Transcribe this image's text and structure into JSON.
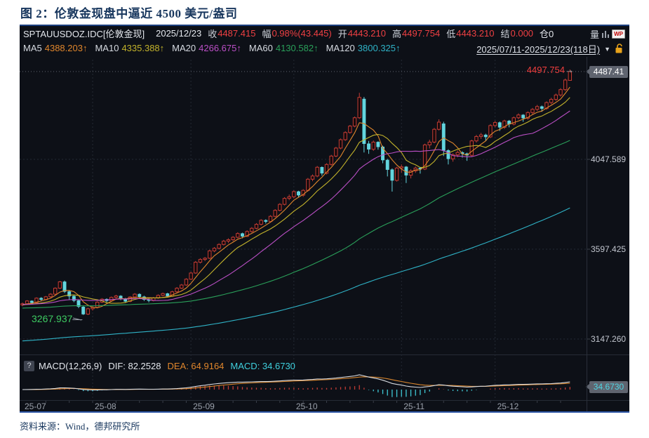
{
  "title": "图 2：伦敦金现盘中逼近 4500 美元/盎司",
  "source": "资料来源：Wind，德邦研究所",
  "chart": {
    "header1": [
      {
        "t": "SPTAUUSDOZ.IDC[伦敦金现]",
        "c": "w first"
      },
      {
        "t": "2025/12/23",
        "c": "w"
      },
      {
        "t": "收",
        "c": "l"
      },
      {
        "t": "4487.415",
        "c": "r"
      },
      {
        "t": "幅",
        "c": "l"
      },
      {
        "t": "0.98%(43.445)",
        "c": "r"
      },
      {
        "t": "开",
        "c": "l"
      },
      {
        "t": "4443.210",
        "c": "r"
      },
      {
        "t": "高",
        "c": "l"
      },
      {
        "t": "4497.754",
        "c": "r"
      },
      {
        "t": "低",
        "c": "l"
      },
      {
        "t": "4443.210",
        "c": "r"
      },
      {
        "t": "结",
        "c": "l"
      },
      {
        "t": "0.000",
        "c": "r"
      },
      {
        "t": "仓0",
        "c": "w"
      }
    ],
    "volume_glyph": "量",
    "wp_label": "WP",
    "ma_items": [
      {
        "label": "MA5",
        "value": "4388.203↑",
        "color": "#e0862c"
      },
      {
        "label": "MA10",
        "value": "4335.388↑",
        "color": "#c3b32b"
      },
      {
        "label": "MA20",
        "value": "4266.675↑",
        "color": "#bb4fc6"
      },
      {
        "label": "MA60",
        "value": "4130.582↑",
        "color": "#2aa05a"
      },
      {
        "label": "MA120",
        "value": "3800.325↑",
        "color": "#2fb3c7"
      }
    ],
    "range_label": "2025/07/11-2025/12/23(118日)",
    "caret": "▼",
    "y_axis": {
      "current_badge": "4487.41",
      "ticks": [
        {
          "label": "4047.589",
          "price": 4047.589
        },
        {
          "label": "3597.425",
          "price": 3597.425
        },
        {
          "label": "3147.260",
          "price": 3147.26
        }
      ]
    },
    "annotations": {
      "high": "4497.754",
      "high_arrow": "→",
      "low": "3267.937",
      "low_dash": "—"
    },
    "x_axis_labels": [
      "25-07",
      "25-08",
      "25-09",
      "25-10",
      "25-11",
      "25-12"
    ],
    "macd": {
      "help": "?",
      "segments": [
        {
          "t": "MACD(12,26,9)",
          "c": "w"
        },
        {
          "t": "DIF: 82.2528",
          "c": "w"
        },
        {
          "t": "DEA: 64.9164",
          "c": "o"
        },
        {
          "t": "MACD: 34.6730",
          "c": "c"
        }
      ],
      "badge": "34.6730"
    }
  },
  "chart_data": {
    "type": "candlestick",
    "symbol": "SPTAUUSDOZ.IDC",
    "name": "伦敦金现",
    "date_range": "2025/07/11-2025/12/23",
    "days": 118,
    "last": {
      "open": 4443.21,
      "high": 4497.754,
      "low": 4443.21,
      "close": 4487.415,
      "change_pct": 0.98,
      "change": 43.445
    },
    "period_high": 4497.754,
    "period_low": 3267.937,
    "y_ticks": [
      4047.589,
      3597.425,
      3147.26
    ],
    "month_start_indices": [
      0,
      15,
      36,
      58,
      81,
      101
    ],
    "month_labels": [
      "25-07",
      "25-08",
      "25-09",
      "25-10",
      "25-11",
      "25-12"
    ],
    "ma_settings": [
      {
        "n": 5,
        "color": "#e0862c",
        "pad": 3318,
        "last": 4388.203
      },
      {
        "n": 10,
        "color": "#c3b32b",
        "pad": 3318,
        "last": 4335.388
      },
      {
        "n": 20,
        "color": "#bb4fc6",
        "pad": 3320,
        "last": 4266.675
      },
      {
        "n": 60,
        "color": "#2aa05a",
        "pad": 3302,
        "last": 4130.582
      },
      {
        "n": 120,
        "color": "#2fb3c7",
        "pad": 3136,
        "last": 3800.325
      }
    ],
    "macd_params": [
      12,
      26,
      9
    ],
    "macd_last": {
      "dif": 82.2528,
      "dea": 64.9164,
      "macd": 34.673
    },
    "ohlc": [
      [
        3318,
        3330,
        3311,
        3324
      ],
      [
        3324,
        3342,
        3320,
        3338
      ],
      [
        3338,
        3341,
        3322,
        3329
      ],
      [
        3329,
        3356,
        3326,
        3352
      ],
      [
        3352,
        3357,
        3338,
        3345
      ],
      [
        3345,
        3363,
        3341,
        3359
      ],
      [
        3359,
        3377,
        3355,
        3372
      ],
      [
        3372,
        3406,
        3368,
        3402
      ],
      [
        3402,
        3438,
        3398,
        3434
      ],
      [
        3434,
        3440,
        3378,
        3385
      ],
      [
        3385,
        3390,
        3342,
        3362
      ],
      [
        3362,
        3368,
        3332,
        3340
      ],
      [
        3340,
        3346,
        3302,
        3310
      ],
      [
        3308,
        3312,
        3267.937,
        3272
      ],
      [
        3272,
        3304,
        3268,
        3299
      ],
      [
        3299,
        3312,
        3290,
        3306
      ],
      [
        3306,
        3336,
        3301,
        3332
      ],
      [
        3332,
        3352,
        3328,
        3347
      ],
      [
        3347,
        3351,
        3332,
        3339
      ],
      [
        3339,
        3360,
        3335,
        3356
      ],
      [
        3356,
        3369,
        3350,
        3363
      ],
      [
        3363,
        3367,
        3342,
        3348
      ],
      [
        3348,
        3353,
        3329,
        3336
      ],
      [
        3336,
        3362,
        3332,
        3358
      ],
      [
        3358,
        3377,
        3353,
        3372
      ],
      [
        3372,
        3376,
        3352,
        3359
      ],
      [
        3359,
        3364,
        3338,
        3345
      ],
      [
        3345,
        3349,
        3331,
        3340
      ],
      [
        3340,
        3358,
        3336,
        3353
      ],
      [
        3353,
        3371,
        3349,
        3366
      ],
      [
        3366,
        3380,
        3361,
        3375
      ],
      [
        3375,
        3379,
        3355,
        3362
      ],
      [
        3362,
        3389,
        3358,
        3384
      ],
      [
        3384,
        3407,
        3380,
        3402
      ],
      [
        3402,
        3423,
        3398,
        3418
      ],
      [
        3418,
        3452,
        3414,
        3447
      ],
      [
        3447,
        3484,
        3443,
        3478
      ],
      [
        3478,
        3538,
        3474,
        3532
      ],
      [
        3532,
        3552,
        3526,
        3546
      ],
      [
        3546,
        3558,
        3538,
        3552
      ],
      [
        3552,
        3595,
        3548,
        3589
      ],
      [
        3589,
        3608,
        3582,
        3602
      ],
      [
        3602,
        3627,
        3596,
        3621
      ],
      [
        3621,
        3644,
        3616,
        3638
      ],
      [
        3638,
        3652,
        3628,
        3645
      ],
      [
        3645,
        3663,
        3638,
        3657
      ],
      [
        3657,
        3682,
        3652,
        3676
      ],
      [
        3676,
        3680,
        3652,
        3662
      ],
      [
        3662,
        3692,
        3658,
        3686
      ],
      [
        3686,
        3708,
        3680,
        3702
      ],
      [
        3702,
        3728,
        3697,
        3722
      ],
      [
        3722,
        3748,
        3716,
        3742
      ],
      [
        3742,
        3747,
        3726,
        3736
      ],
      [
        3736,
        3768,
        3731,
        3762
      ],
      [
        3762,
        3798,
        3757,
        3792
      ],
      [
        3792,
        3828,
        3787,
        3822
      ],
      [
        3822,
        3858,
        3817,
        3852
      ],
      [
        3852,
        3871,
        3843,
        3860
      ],
      [
        3860,
        3892,
        3852,
        3886
      ],
      [
        3886,
        3890,
        3856,
        3868
      ],
      [
        3868,
        3898,
        3860,
        3892
      ],
      [
        3892,
        3954,
        3886,
        3948
      ],
      [
        3948,
        3972,
        3938,
        3964
      ],
      [
        3964,
        4014,
        3958,
        4008
      ],
      [
        4008,
        4012,
        3966,
        3978
      ],
      [
        3978,
        4028,
        3972,
        4022
      ],
      [
        4022,
        4070,
        4016,
        4064
      ],
      [
        4064,
        4110,
        4058,
        4104
      ],
      [
        4104,
        4152,
        4098,
        4146
      ],
      [
        4146,
        4188,
        4140,
        4182
      ],
      [
        4182,
        4220,
        4176,
        4214
      ],
      [
        4214,
        4262,
        4208,
        4256
      ],
      [
        4256,
        4381,
        4250,
        4358
      ],
      [
        4350,
        4360,
        4082,
        4126
      ],
      [
        4126,
        4140,
        4075,
        4098
      ],
      [
        4098,
        4142,
        4090,
        4134
      ],
      [
        4134,
        4138,
        4096,
        4110
      ],
      [
        4110,
        4116,
        4028,
        4044
      ],
      [
        4044,
        4050,
        3962,
        3996
      ],
      [
        3996,
        4002,
        3886,
        3942
      ],
      [
        3942,
        4010,
        3936,
        4004
      ],
      [
        4004,
        4022,
        3981,
        4010
      ],
      [
        4010,
        4014,
        3929,
        3968
      ],
      [
        3968,
        3998,
        3952,
        3990
      ],
      [
        3990,
        4012,
        3980,
        4004
      ],
      [
        4004,
        4009,
        3976,
        3999
      ],
      [
        3999,
        4126,
        3994,
        4120
      ],
      [
        4120,
        4146,
        4102,
        4134
      ],
      [
        4134,
        4205,
        4128,
        4198
      ],
      [
        4198,
        4248,
        4192,
        4234
      ],
      [
        4226,
        4236,
        4064,
        4092
      ],
      [
        4092,
        4098,
        4022,
        4050
      ],
      [
        4050,
        4078,
        4036,
        4070
      ],
      [
        4070,
        4092,
        4058,
        4082
      ],
      [
        4082,
        4088,
        4056,
        4076
      ],
      [
        4076,
        4081,
        4040,
        4068
      ],
      [
        4068,
        4146,
        4062,
        4140
      ],
      [
        4140,
        4170,
        4132,
        4162
      ],
      [
        4162,
        4180,
        4150,
        4170
      ],
      [
        4170,
        4176,
        4140,
        4160
      ],
      [
        4160,
        4224,
        4154,
        4217
      ],
      [
        4217,
        4240,
        4208,
        4232
      ],
      [
        4232,
        4237,
        4190,
        4208
      ],
      [
        4208,
        4246,
        4200,
        4240
      ],
      [
        4240,
        4245,
        4208,
        4224
      ],
      [
        4224,
        4262,
        4218,
        4256
      ],
      [
        4256,
        4278,
        4248,
        4270
      ],
      [
        4270,
        4274,
        4236,
        4254
      ],
      [
        4254,
        4288,
        4246,
        4282
      ],
      [
        4282,
        4305,
        4274,
        4298
      ],
      [
        4298,
        4320,
        4290,
        4312
      ],
      [
        4312,
        4317,
        4286,
        4302
      ],
      [
        4302,
        4338,
        4296,
        4332
      ],
      [
        4332,
        4356,
        4324,
        4348
      ],
      [
        4348,
        4377,
        4340,
        4370
      ],
      [
        4370,
        4404,
        4362,
        4397
      ],
      [
        4397,
        4452,
        4390,
        4445
      ],
      [
        4443.21,
        4497.754,
        4443.21,
        4487.415
      ]
    ]
  },
  "colors": {
    "up": "#c43c34",
    "up_bright": "#e0433c",
    "down": "#63d5de",
    "grid": "#242a34",
    "current_dotted": "#6a707c",
    "dif_line": "#d8dce2",
    "dea_line": "#d8862e",
    "hist_pos": "#c23b35",
    "hist_neg": "#3fc8d4"
  }
}
